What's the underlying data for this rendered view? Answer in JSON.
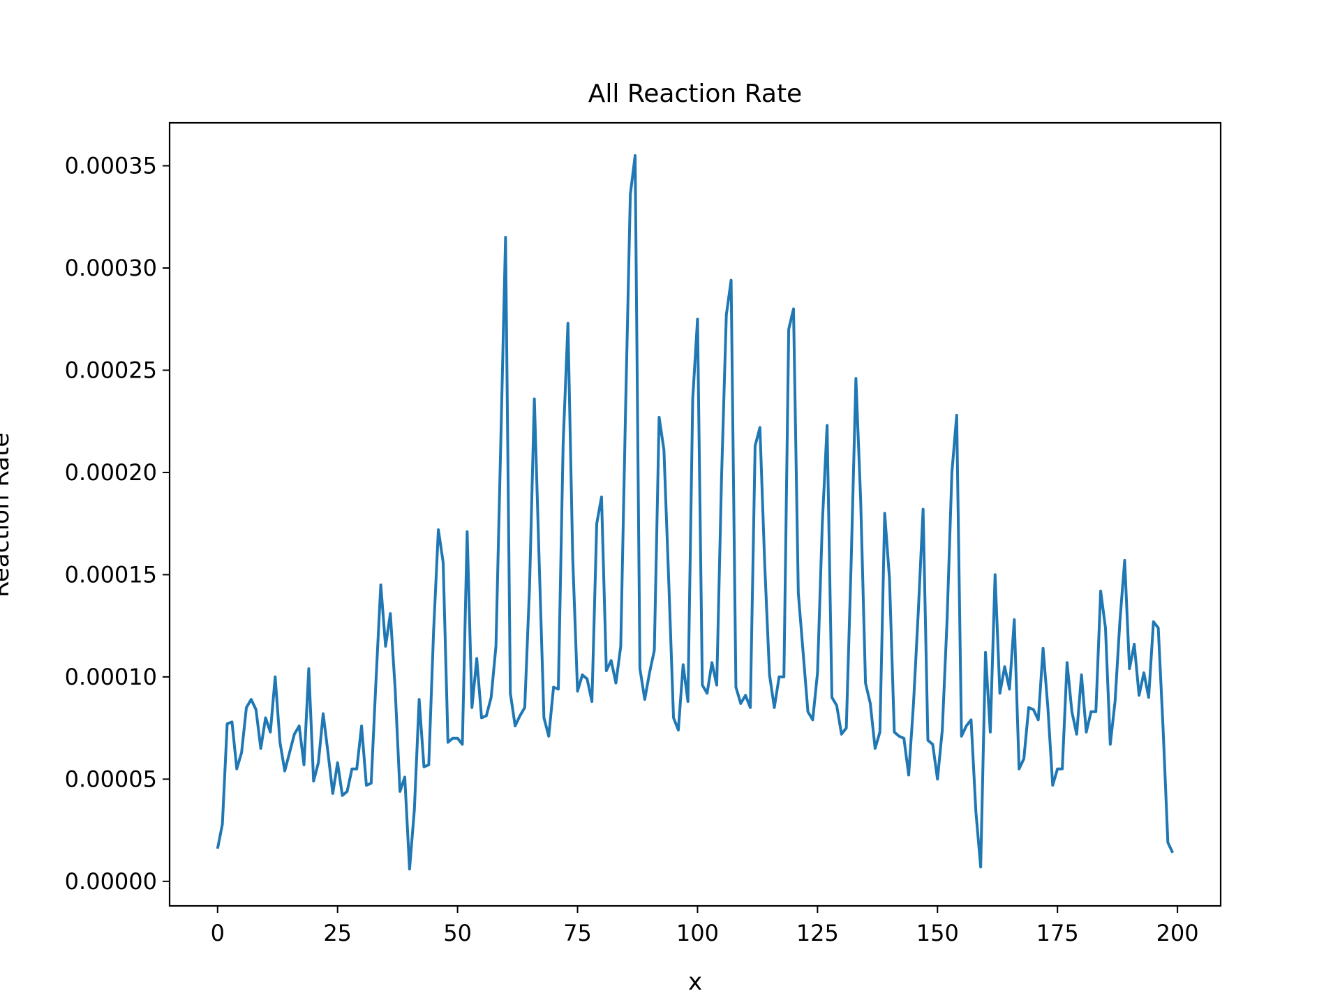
{
  "chart_data": {
    "type": "line",
    "title": "All Reaction Rate",
    "xlabel": "x",
    "ylabel": "Reaction Rate",
    "xlim": [
      -10,
      209
    ],
    "ylim": [
      -1.2e-05,
      0.000371
    ],
    "xticks": [
      0,
      25,
      50,
      75,
      100,
      125,
      150,
      175,
      200
    ],
    "yticks": [
      0,
      5e-05,
      0.0001,
      0.00015,
      0.0002,
      0.00025,
      0.0003,
      0.00035
    ],
    "ytick_labels": [
      "0.00000",
      "0.00005",
      "0.00010",
      "0.00015",
      "0.00020",
      "0.00025",
      "0.00030",
      "0.00035"
    ],
    "grid": false,
    "series": [
      {
        "color": "#1f77b4",
        "x": [
          0,
          1,
          2,
          3,
          4,
          5,
          6,
          7,
          8,
          9,
          10,
          11,
          12,
          13,
          14,
          15,
          16,
          17,
          18,
          19,
          20,
          21,
          22,
          23,
          24,
          25,
          26,
          27,
          28,
          29,
          30,
          31,
          32,
          33,
          34,
          35,
          36,
          37,
          38,
          39,
          40,
          41,
          42,
          43,
          44,
          45,
          46,
          47,
          48,
          49,
          50,
          51,
          52,
          53,
          54,
          55,
          56,
          57,
          58,
          59,
          60,
          61,
          62,
          63,
          64,
          65,
          66,
          67,
          68,
          69,
          70,
          71,
          72,
          73,
          74,
          75,
          76,
          77,
          78,
          79,
          80,
          81,
          82,
          83,
          84,
          85,
          86,
          87,
          88,
          89,
          90,
          91,
          92,
          93,
          94,
          95,
          96,
          97,
          98,
          99,
          100,
          101,
          102,
          103,
          104,
          105,
          106,
          107,
          108,
          109,
          110,
          111,
          112,
          113,
          114,
          115,
          116,
          117,
          118,
          119,
          120,
          121,
          122,
          123,
          124,
          125,
          126,
          127,
          128,
          129,
          130,
          131,
          132,
          133,
          134,
          135,
          136,
          137,
          138,
          139,
          140,
          141,
          142,
          143,
          144,
          145,
          146,
          147,
          148,
          149,
          150,
          151,
          152,
          153,
          154,
          155,
          156,
          157,
          158,
          159,
          160,
          161,
          162,
          163,
          164,
          165,
          166,
          167,
          168,
          169,
          170,
          171,
          172,
          173,
          174,
          175,
          176,
          177,
          178,
          179,
          180,
          181,
          182,
          183,
          184,
          185,
          186,
          187,
          188,
          189,
          190,
          191,
          192,
          193,
          194,
          195,
          196,
          197,
          198,
          199
        ],
        "y": [
          1.6e-05,
          2.8e-05,
          7.7e-05,
          7.8e-05,
          5.5e-05,
          6.3e-05,
          8.5e-05,
          8.9e-05,
          8.4e-05,
          6.5e-05,
          8e-05,
          7.3e-05,
          0.0001,
          6.8e-05,
          5.4e-05,
          6.3e-05,
          7.2e-05,
          7.6e-05,
          5.7e-05,
          0.000104,
          4.9e-05,
          5.8e-05,
          8.2e-05,
          6.3e-05,
          4.3e-05,
          5.8e-05,
          4.2e-05,
          4.4e-05,
          5.5e-05,
          5.5e-05,
          7.6e-05,
          4.7e-05,
          4.8e-05,
          9.8e-05,
          0.000145,
          0.000115,
          0.000131,
          9.4e-05,
          4.4e-05,
          5.1e-05,
          6e-06,
          3.5e-05,
          8.9e-05,
          5.6e-05,
          5.7e-05,
          0.000122,
          0.000172,
          0.000156,
          6.8e-05,
          7e-05,
          7e-05,
          6.7e-05,
          0.000171,
          8.5e-05,
          0.000109,
          8e-05,
          8.1e-05,
          9e-05,
          0.000115,
          0.000214,
          0.000315,
          9.2e-05,
          7.6e-05,
          8.1e-05,
          8.5e-05,
          0.000144,
          0.000236,
          0.000157,
          8e-05,
          7.1e-05,
          9.5e-05,
          9.4e-05,
          0.000214,
          0.000273,
          0.000158,
          9.3e-05,
          0.000101,
          9.9e-05,
          8.8e-05,
          0.000175,
          0.000188,
          0.000103,
          0.000108,
          9.7e-05,
          0.000115,
          0.00023,
          0.000336,
          0.000355,
          0.000104,
          8.9e-05,
          0.000102,
          0.000113,
          0.000227,
          0.000211,
          0.000147,
          8e-05,
          7.4e-05,
          0.000106,
          8.8e-05,
          0.000236,
          0.000275,
          9.6e-05,
          9.2e-05,
          0.000107,
          9.6e-05,
          0.000197,
          0.000277,
          0.000294,
          9.5e-05,
          8.7e-05,
          9.1e-05,
          8.5e-05,
          0.000213,
          0.000222,
          0.000155,
          0.000101,
          8.5e-05,
          0.0001,
          0.0001,
          0.00027,
          0.00028,
          0.000141,
          0.000112,
          8.3e-05,
          7.9e-05,
          0.000102,
          0.000175,
          0.000223,
          9e-05,
          8.6e-05,
          7.2e-05,
          7.5e-05,
          0.000155,
          0.000246,
          0.000186,
          9.7e-05,
          8.7e-05,
          6.5e-05,
          7.3e-05,
          0.00018,
          0.000148,
          7.3e-05,
          7.1e-05,
          7e-05,
          5.2e-05,
          8.7e-05,
          0.000132,
          0.000182,
          6.9e-05,
          6.7e-05,
          5e-05,
          7.4e-05,
          0.000128,
          0.0002,
          0.000228,
          7.1e-05,
          7.6e-05,
          7.9e-05,
          3.4e-05,
          7e-06,
          0.000112,
          7.3e-05,
          0.00015,
          9.2e-05,
          0.000105,
          9.4e-05,
          0.000128,
          5.5e-05,
          6e-05,
          8.5e-05,
          8.4e-05,
          7.9e-05,
          0.000114,
          8.5e-05,
          4.7e-05,
          5.5e-05,
          5.5e-05,
          0.000107,
          8.3e-05,
          7.2e-05,
          0.000101,
          7.3e-05,
          8.3e-05,
          8.3e-05,
          0.000142,
          0.000124,
          6.7e-05,
          8.8e-05,
          0.000127,
          0.000157,
          0.000104,
          0.000116,
          9.1e-05,
          0.000102,
          9e-05,
          0.000127,
          0.000124,
          7.5e-05,
          1.9e-05,
          1.4e-05
        ]
      }
    ]
  }
}
